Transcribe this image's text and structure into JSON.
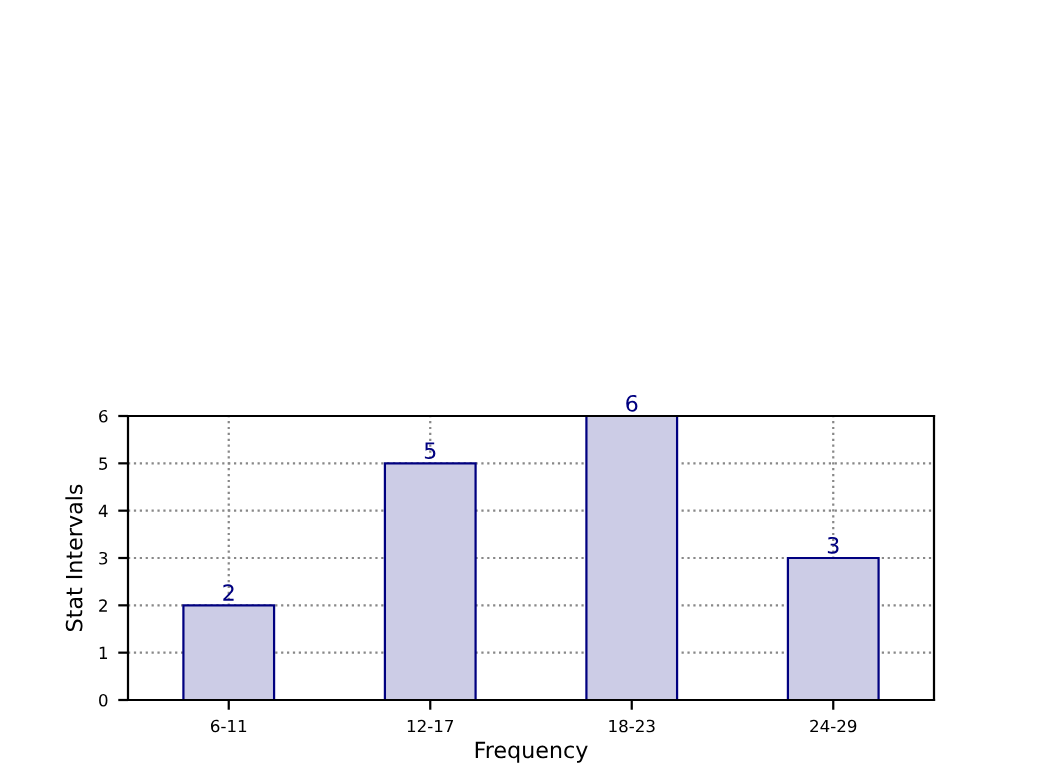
{
  "chart_data": {
    "type": "bar",
    "xlabel": "Frequency",
    "ylabel": "Stat Intervals",
    "categories": [
      "6-11",
      "12-17",
      "18-23",
      "24-29"
    ],
    "values": [
      2,
      5,
      6,
      3
    ],
    "color": "#cccce6",
    "ylim": [
      0,
      6
    ],
    "yticks": [
      0,
      1,
      2,
      3,
      4,
      5,
      6
    ],
    "grid": true,
    "data_labels": true
  }
}
